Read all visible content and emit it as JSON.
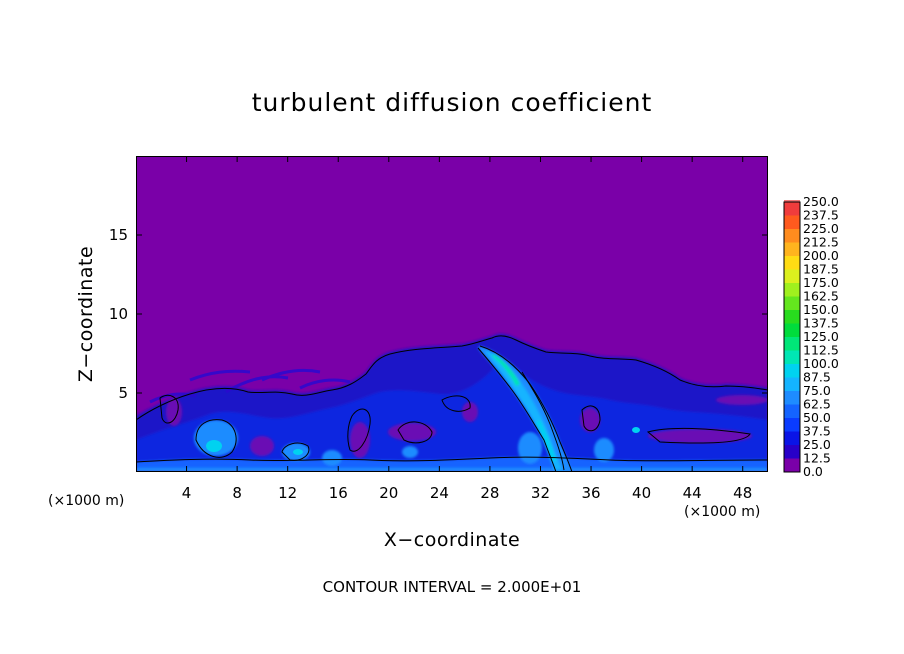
{
  "chart_data": {
    "type": "heatmap",
    "title": "turbulent diffusion coefficient",
    "xlabel": "X−coordinate",
    "ylabel": "Z−coordinate",
    "x_unit_left": "(×1000 m)",
    "x_unit_right": "(×1000 m)",
    "x_ticks": [
      4,
      8,
      12,
      16,
      20,
      24,
      28,
      32,
      36,
      40,
      44,
      48
    ],
    "y_ticks": [
      5,
      10,
      15
    ],
    "xlim": [
      0,
      50
    ],
    "ylim": [
      0,
      20
    ],
    "footnote": "CONTOUR INTERVAL = 2.000E+01",
    "colorbar": {
      "levels": [
        "0.0",
        "12.5",
        "25.0",
        "37.5",
        "50.0",
        "62.5",
        "75.0",
        "87.5",
        "100.0",
        "112.5",
        "125.0",
        "137.5",
        "150.0",
        "162.5",
        "175.0",
        "187.5",
        "200.0",
        "212.5",
        "225.0",
        "237.5",
        "250.0"
      ],
      "colors": [
        "#7a00a8",
        "#2800c8",
        "#0a14e6",
        "#0a3cff",
        "#1464ff",
        "#1e8cff",
        "#14b4ff",
        "#00d2f0",
        "#00e6b4",
        "#00e678",
        "#00dc3c",
        "#28dc1e",
        "#64e61e",
        "#a0f01e",
        "#dcf01e",
        "#ffdc14",
        "#ffb41e",
        "#ff8c1e",
        "#ff5a1e",
        "#f03c3c",
        "#f07878"
      ]
    },
    "description": "Turbulent diffusion coefficient field; values near 0 above about z = 8 km; a turbulent layer (roughly 12.5–75) below about 5–9 km with maximum near x = 28–34 km; contoured at an interval of 20."
  }
}
